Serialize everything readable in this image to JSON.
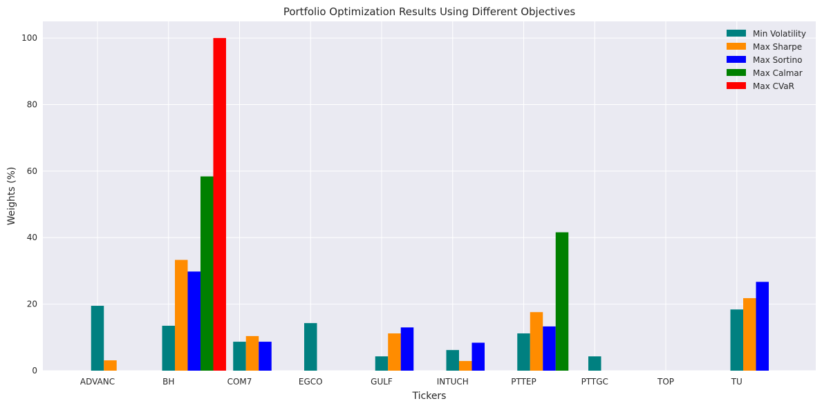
{
  "chart_data": {
    "type": "bar",
    "title": "Portfolio Optimization Results Using Different Objectives",
    "xlabel": "Tickers",
    "ylabel": "Weights (%)",
    "ylim": [
      0,
      105
    ],
    "yticks": [
      0,
      20,
      40,
      60,
      80,
      100
    ],
    "grid": true,
    "legend_position": "top-right",
    "categories": [
      "ADVANC",
      "BH",
      "COM7",
      "EGCO",
      "GULF",
      "INTUCH",
      "PTTEP",
      "PTTGC",
      "TOP",
      "TU"
    ],
    "series": [
      {
        "name": "Min Volatility",
        "color": "#008080",
        "values": [
          19.5,
          13.5,
          8.7,
          14.3,
          4.3,
          6.2,
          11.2,
          4.3,
          0,
          18.4
        ]
      },
      {
        "name": "Max Sharpe",
        "color": "#ff8c00",
        "values": [
          3.1,
          33.3,
          10.4,
          0,
          11.2,
          2.9,
          17.6,
          0,
          0,
          21.8
        ]
      },
      {
        "name": "Max Sortino",
        "color": "#0000ff",
        "values": [
          0,
          29.8,
          8.7,
          0,
          13.0,
          8.4,
          13.3,
          0,
          0,
          26.7
        ]
      },
      {
        "name": "Max Calmar",
        "color": "#008000",
        "values": [
          0,
          58.4,
          0,
          0,
          0,
          0,
          41.6,
          0,
          0,
          0
        ]
      },
      {
        "name": "Max CVaR",
        "color": "#ff0000",
        "values": [
          0,
          100,
          0,
          0,
          0,
          0,
          0,
          0,
          0,
          0
        ]
      }
    ]
  }
}
